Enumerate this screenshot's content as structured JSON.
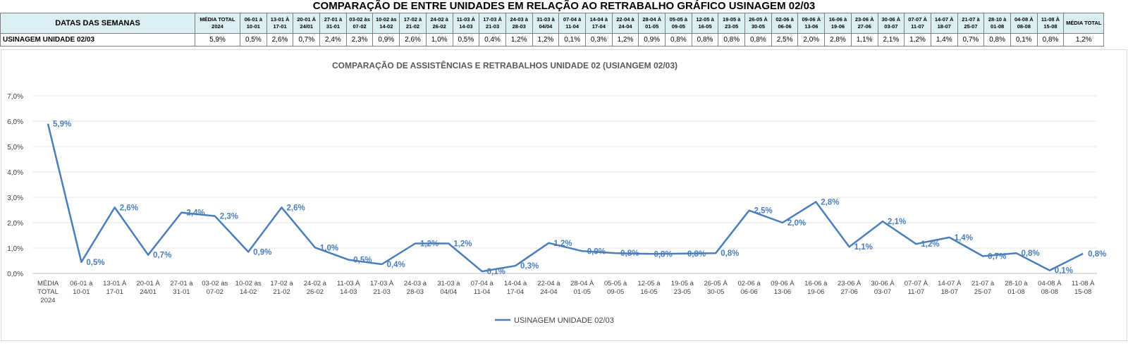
{
  "sheet_title": "COMPARAÇÃO DE ENTRE UNIDADES EM RELAÇÃO AO RETRABALHO GRÁFICO USINAGEM 02/03",
  "table": {
    "header_label": "DATAS DAS SEMANAS",
    "row_label": "USINAGEM UNIDADE 02/03",
    "avg_header_first": "MÉDIA TOTAL 2024",
    "avg_value_first": "5,9%",
    "avg_header_last": "MÉDIA TOTAL",
    "avg_value_last": "1,2%",
    "weeks": [
      {
        "label": "06-01 à 10-01",
        "value": "0,5%"
      },
      {
        "label": "13-01 À 17-01",
        "value": "2,6%"
      },
      {
        "label": "20-01 À 24/01",
        "value": "0,7%"
      },
      {
        "label": "27-01 à 31-01",
        "value": "2,4%"
      },
      {
        "label": "03-02 às 07-02",
        "value": "2,3%"
      },
      {
        "label": "10-02 às 14-02",
        "value": "0,9%"
      },
      {
        "label": "17-02 à 21-02",
        "value": "2,6%"
      },
      {
        "label": "24-02 à 26-02",
        "value": "1,0%"
      },
      {
        "label": "11-03 À 14-03",
        "value": "0,5%"
      },
      {
        "label": "17-03 À 21-03",
        "value": "0,4%"
      },
      {
        "label": "24-03 à 28-03",
        "value": "1,2%"
      },
      {
        "label": "31-03 à 04/04",
        "value": "1,2%"
      },
      {
        "label": "07-04 à 11-04",
        "value": "0,1%"
      },
      {
        "label": "14-04 à 17-04",
        "value": "0,3%"
      },
      {
        "label": "22-04 à 24-04",
        "value": "1,2%"
      },
      {
        "label": "28-04 À 01-05",
        "value": "0,9%"
      },
      {
        "label": "05-05 à 09-05",
        "value": "0,8%"
      },
      {
        "label": "12-05 à 16-05",
        "value": "0,8%"
      },
      {
        "label": "19-05 à 23-05",
        "value": "0,8%"
      },
      {
        "label": "26-05 À 30-05",
        "value": "0,8%"
      },
      {
        "label": "02-06 à 06-06",
        "value": "2,5%"
      },
      {
        "label": "09-06 À 13-06",
        "value": "2,0%"
      },
      {
        "label": "16-06 à 19-06",
        "value": "2,8%"
      },
      {
        "label": "23-06 À 27-06",
        "value": "1,1%"
      },
      {
        "label": "30-06 À 03-07",
        "value": "2,1%"
      },
      {
        "label": "07-07 À 11-07",
        "value": "1,2%"
      },
      {
        "label": "14-07 À 18-07",
        "value": "1,4%"
      },
      {
        "label": "21-07 à 25-07",
        "value": "0,7%"
      },
      {
        "label": "28-10 à 01-08",
        "value": "0,8%"
      },
      {
        "label": "04-08 À 08-08",
        "value": "0,1%"
      },
      {
        "label": "11-08 À 15-08",
        "value": "0,8%"
      }
    ]
  },
  "chart_data": {
    "type": "line",
    "title": "COMPARAÇÃO DE ASSISTÊNCIAS E RETRABALHOS UNIDADE 02  (USIANGEM 02/03)",
    "categories": [
      "MÉDIA TOTAL 2024",
      "06-01 à 10-01",
      "13-01 À 17-01",
      "20-01 À 24/01",
      "27-01 à 31-01",
      "03-02 às 07-02",
      "10-02 às 14-02",
      "17-02 à 21-02",
      "24-02 à 26-02",
      "11-03 À 14-03",
      "17-03 À 21-03",
      "24-03 à 28-03",
      "31-03 à 04/04",
      "07-04 à 11-04",
      "14-04 à 17-04",
      "22-04 à 24-04",
      "28-04 À 01-05",
      "05-05 à 09-05",
      "12-05 à 16-05",
      "19-05 à 23-05",
      "26-05 À 30-05",
      "02-06 à 06-06",
      "09-06 À 13-06",
      "16-06 à 19-06",
      "23-06 À 27-06",
      "30-06 À 03-07",
      "07-07 À 11-07",
      "14-07 À 18-07",
      "21-07 à 25-07",
      "28-10 à 01-08",
      "04-08 À 08-08",
      "11-08 À 15-08"
    ],
    "series": [
      {
        "name": "USINAGEM UNIDADE 02/03",
        "values": [
          5.9,
          0.45,
          2.6,
          0.73,
          2.4,
          2.26,
          0.85,
          2.6,
          1.02,
          0.54,
          0.36,
          1.18,
          1.18,
          0.08,
          0.3,
          1.2,
          0.88,
          0.8,
          0.77,
          0.78,
          0.8,
          2.48,
          2.0,
          2.82,
          1.05,
          2.05,
          1.16,
          1.42,
          0.68,
          0.8,
          0.12,
          0.78
        ],
        "labels": [
          "5,9%",
          "0,5%",
          "2,6%",
          "0,7%",
          "2,4%",
          "2,3%",
          "0,9%",
          "2,6%",
          "1,0%",
          "0,5%",
          "0,4%",
          "1,2%",
          "1,2%",
          "0,1%",
          "0,3%",
          "1,2%",
          "0,9%",
          "0,8%",
          "0,8%",
          "0,8%",
          "0,8%",
          "2,5%",
          "2,0%",
          "2,8%",
          "1,1%",
          "2,1%",
          "1,2%",
          "1,4%",
          "0,7%",
          "0,8%",
          "0,1%",
          "0,8%"
        ]
      }
    ],
    "y_ticks": [
      "0,0%",
      "1,0%",
      "2,0%",
      "3,0%",
      "4,0%",
      "5,0%",
      "6,0%",
      "7,0%"
    ],
    "ylim": [
      0,
      7
    ],
    "grid": true,
    "legend": "bottom",
    "line_color": "#4a7ebb",
    "label_color": "#4a7ebb"
  }
}
